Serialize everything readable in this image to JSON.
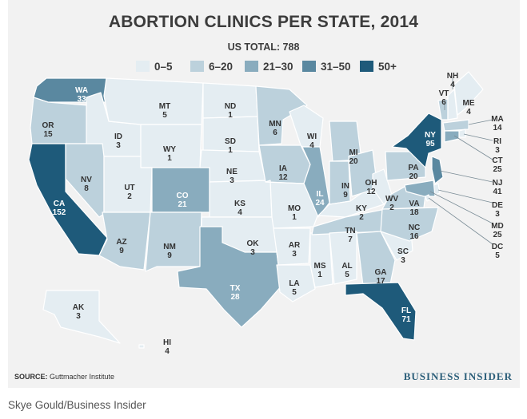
{
  "title": "ABORTION CLINICS PER STATE, 2014",
  "total": "US TOTAL: 788",
  "legend": [
    {
      "label": "0–5",
      "color": "#e4edf2"
    },
    {
      "label": "6–20",
      "color": "#bcd1dc"
    },
    {
      "label": "21–30",
      "color": "#89acbe"
    },
    {
      "label": "31–50",
      "color": "#5a88a0"
    },
    {
      "label": "50+",
      "color": "#1e5a7a"
    }
  ],
  "states": [
    {
      "abbr": "WA",
      "value": "33"
    },
    {
      "abbr": "OR",
      "value": "15"
    },
    {
      "abbr": "CA",
      "value": "152"
    },
    {
      "abbr": "NV",
      "value": "8"
    },
    {
      "abbr": "ID",
      "value": "3"
    },
    {
      "abbr": "MT",
      "value": "5"
    },
    {
      "abbr": "WY",
      "value": "1"
    },
    {
      "abbr": "UT",
      "value": "2"
    },
    {
      "abbr": "AZ",
      "value": "9"
    },
    {
      "abbr": "CO",
      "value": "21"
    },
    {
      "abbr": "NM",
      "value": "9"
    },
    {
      "abbr": "ND",
      "value": "1"
    },
    {
      "abbr": "SD",
      "value": "1"
    },
    {
      "abbr": "NE",
      "value": "3"
    },
    {
      "abbr": "KS",
      "value": "4"
    },
    {
      "abbr": "OK",
      "value": "3"
    },
    {
      "abbr": "TX",
      "value": "28"
    },
    {
      "abbr": "MN",
      "value": "6"
    },
    {
      "abbr": "IA",
      "value": "12"
    },
    {
      "abbr": "MO",
      "value": "1"
    },
    {
      "abbr": "AR",
      "value": "3"
    },
    {
      "abbr": "LA",
      "value": "5"
    },
    {
      "abbr": "WI",
      "value": "4"
    },
    {
      "abbr": "IL",
      "value": "24"
    },
    {
      "abbr": "MS",
      "value": "1"
    },
    {
      "abbr": "MI",
      "value": "20"
    },
    {
      "abbr": "IN",
      "value": "9"
    },
    {
      "abbr": "KY",
      "value": "2"
    },
    {
      "abbr": "TN",
      "value": "7"
    },
    {
      "abbr": "AL",
      "value": "5"
    },
    {
      "abbr": "OH",
      "value": "12"
    },
    {
      "abbr": "WV",
      "value": "2"
    },
    {
      "abbr": "GA",
      "value": "17"
    },
    {
      "abbr": "FL",
      "value": "71"
    },
    {
      "abbr": "SC",
      "value": "3"
    },
    {
      "abbr": "NC",
      "value": "16"
    },
    {
      "abbr": "VA",
      "value": "18"
    },
    {
      "abbr": "PA",
      "value": "20"
    },
    {
      "abbr": "NY",
      "value": "95"
    },
    {
      "abbr": "VT",
      "value": "6"
    },
    {
      "abbr": "NH",
      "value": "4"
    },
    {
      "abbr": "ME",
      "value": "4"
    },
    {
      "abbr": "MA",
      "value": "14"
    },
    {
      "abbr": "RI",
      "value": "3"
    },
    {
      "abbr": "CT",
      "value": "25"
    },
    {
      "abbr": "NJ",
      "value": "41"
    },
    {
      "abbr": "DE",
      "value": "3"
    },
    {
      "abbr": "MD",
      "value": "25"
    },
    {
      "abbr": "DC",
      "value": "5"
    },
    {
      "abbr": "AK",
      "value": "3"
    },
    {
      "abbr": "HI",
      "value": "4"
    }
  ],
  "source_label": "SOURCE:",
  "source": "Guttmacher Institute",
  "brand": "BUSINESS INSIDER",
  "credit": "Skye Gould/Business Insider"
}
